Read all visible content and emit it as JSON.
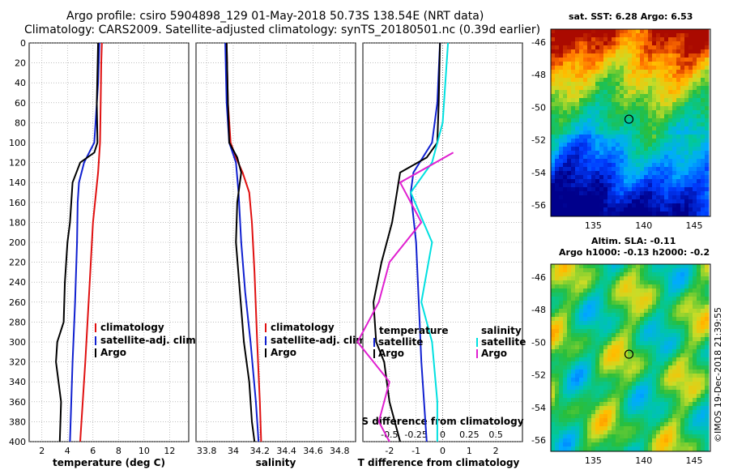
{
  "header": {
    "line1": "Argo profile: csiro 5904898_129 01-May-2018 50.73S 138.54E (NRT data)",
    "line2": "Climatology: CARS2009. Satellite-adjusted climatology: synTS_20180501.nc (0.39d earlier)"
  },
  "colors": {
    "climatology": "#e01010",
    "satellite": "#1020d0",
    "argo": "#000000",
    "sat_sal": "#00e0e0",
    "argo_sal": "#e020d0"
  },
  "chart_data": [
    {
      "type": "line",
      "id": "temperature",
      "xlabel": "temperature (deg C)",
      "xlim": [
        1,
        13.5
      ],
      "ylim": [
        400,
        0
      ],
      "xticks": [
        "2",
        "4",
        "6",
        "8",
        "10",
        "12"
      ],
      "yticks": [
        "0",
        "20",
        "40",
        "60",
        "80",
        "100",
        "120",
        "140",
        "160",
        "180",
        "200",
        "220",
        "240",
        "260",
        "280",
        "300",
        "320",
        "340",
        "360",
        "380",
        "400"
      ],
      "legend": [
        "climatology",
        "satellite-adj. clim.",
        "Argo"
      ],
      "series": [
        {
          "name": "climatology",
          "color": "#e01010",
          "depth": [
            0,
            20,
            60,
            100,
            130,
            180,
            250,
            320,
            400
          ],
          "values": [
            6.7,
            6.65,
            6.6,
            6.55,
            6.4,
            6.0,
            5.7,
            5.4,
            5.0
          ]
        },
        {
          "name": "satellite-adj. clim.",
          "color": "#1020d0",
          "depth": [
            0,
            40,
            80,
            100,
            120,
            140,
            160,
            200,
            260,
            320,
            400
          ],
          "values": [
            6.5,
            6.4,
            6.2,
            6.1,
            5.3,
            4.9,
            4.8,
            4.75,
            4.6,
            4.4,
            4.2
          ]
        },
        {
          "name": "Argo",
          "color": "#000000",
          "depth": [
            0,
            60,
            100,
            110,
            120,
            140,
            180,
            200,
            240,
            280,
            300,
            320,
            360,
            400
          ],
          "values": [
            6.4,
            6.3,
            6.35,
            6.1,
            5.0,
            4.4,
            4.2,
            4.0,
            3.8,
            3.7,
            3.2,
            3.1,
            3.5,
            3.4
          ]
        }
      ]
    },
    {
      "type": "line",
      "id": "salinity",
      "xlabel": "salinity",
      "xlim": [
        33.72,
        34.92
      ],
      "ylim": [
        400,
        0
      ],
      "xticks": [
        "33.8",
        "34",
        "34.2",
        "34.4",
        "34.6",
        "34.8"
      ],
      "legend": [
        "climatology",
        "satellite-adj. clim.",
        "Argo"
      ],
      "series": [
        {
          "name": "climatology",
          "color": "#e01010",
          "depth": [
            0,
            60,
            100,
            115,
            130,
            150,
            180,
            230,
            300,
            360,
            400
          ],
          "values": [
            33.95,
            33.96,
            33.98,
            34.02,
            34.07,
            34.12,
            34.14,
            34.16,
            34.18,
            34.2,
            34.21
          ]
        },
        {
          "name": "satellite-adj. clim.",
          "color": "#1020d0",
          "depth": [
            0,
            60,
            100,
            120,
            150,
            200,
            250,
            300,
            360,
            400
          ],
          "values": [
            33.94,
            33.95,
            33.97,
            34.02,
            34.04,
            34.06,
            34.09,
            34.13,
            34.17,
            34.19
          ]
        },
        {
          "name": "Argo",
          "color": "#000000",
          "depth": [
            0,
            60,
            100,
            115,
            130,
            160,
            200,
            250,
            300,
            340,
            380,
            400
          ],
          "values": [
            33.95,
            33.96,
            33.97,
            34.03,
            34.06,
            34.03,
            34.02,
            34.05,
            34.08,
            34.12,
            34.14,
            34.16
          ]
        }
      ]
    },
    {
      "type": "line",
      "id": "difference",
      "xlabel": "T difference from climatology",
      "xlabel2": "S difference from climatology",
      "xlim": [
        -3,
        3
      ],
      "ylim": [
        400,
        0
      ],
      "xticks": [
        "-2",
        "-1",
        "0",
        "1",
        "2"
      ],
      "xticks2": [
        "-0.5",
        "-0.25",
        "0",
        "0.25",
        "0.5"
      ],
      "legend_left": {
        "title": "temperature",
        "items": [
          "satellite",
          "Argo"
        ]
      },
      "legend_right": {
        "title": "salinity",
        "items": [
          "satellite",
          "Argo"
        ]
      },
      "series": [
        {
          "name": "T satellite",
          "color": "#1020d0",
          "depth": [
            0,
            60,
            100,
            130,
            150,
            200,
            260,
            320,
            400
          ],
          "values": [
            -0.1,
            -0.2,
            -0.4,
            -1.1,
            -1.2,
            -1.0,
            -0.9,
            -0.8,
            -0.6
          ]
        },
        {
          "name": "T Argo",
          "color": "#000000",
          "depth": [
            0,
            60,
            100,
            115,
            130,
            180,
            220,
            260,
            300,
            320,
            360,
            400
          ],
          "values": [
            -0.1,
            -0.15,
            -0.2,
            -0.6,
            -1.6,
            -1.9,
            -2.3,
            -2.6,
            -2.5,
            -2.2,
            -2.0,
            -1.6
          ]
        },
        {
          "name": "S satellite",
          "color": "#00e0e0",
          "depth": [
            0,
            80,
            120,
            150,
            200,
            260,
            300,
            360,
            400
          ],
          "values": [
            0.05,
            0.0,
            -0.1,
            -0.3,
            -0.1,
            -0.2,
            -0.1,
            -0.05,
            -0.05
          ]
        },
        {
          "name": "S Argo",
          "color": "#e020d0",
          "depth": [
            110,
            140,
            180,
            220,
            260,
            300,
            340,
            380,
            400
          ],
          "values": [
            0.1,
            -0.4,
            -0.2,
            -0.5,
            -0.6,
            -0.8,
            -0.5,
            -0.6,
            -0.5
          ]
        }
      ]
    },
    {
      "type": "heatmap",
      "id": "sst_map",
      "title": "sat. SST: 6.28 Argo: 6.53",
      "xticks": [
        "135",
        "140",
        "145"
      ],
      "yticks": [
        "-46",
        "-48",
        "-50",
        "-52",
        "-54",
        "-56"
      ],
      "xlim": [
        130.8,
        146.6
      ],
      "ylim": [
        -56.7,
        -45.2
      ],
      "marker": {
        "lon": 138.54,
        "lat": -50.73
      }
    },
    {
      "type": "heatmap",
      "id": "sla_map",
      "title": "Altim. SLA: -0.11",
      "subtitle": "Argo h1000: -0.13 h2000: -0.2",
      "xticks": [
        "135",
        "140",
        "145"
      ],
      "yticks": [
        "-46",
        "-48",
        "-50",
        "-52",
        "-54",
        "-56"
      ],
      "xlim": [
        130.8,
        146.6
      ],
      "ylim": [
        -56.7,
        -45.2
      ],
      "marker": {
        "lon": 138.54,
        "lat": -50.73
      }
    }
  ],
  "credit": "©IMOS 19-Dec-2018 21:39:55"
}
